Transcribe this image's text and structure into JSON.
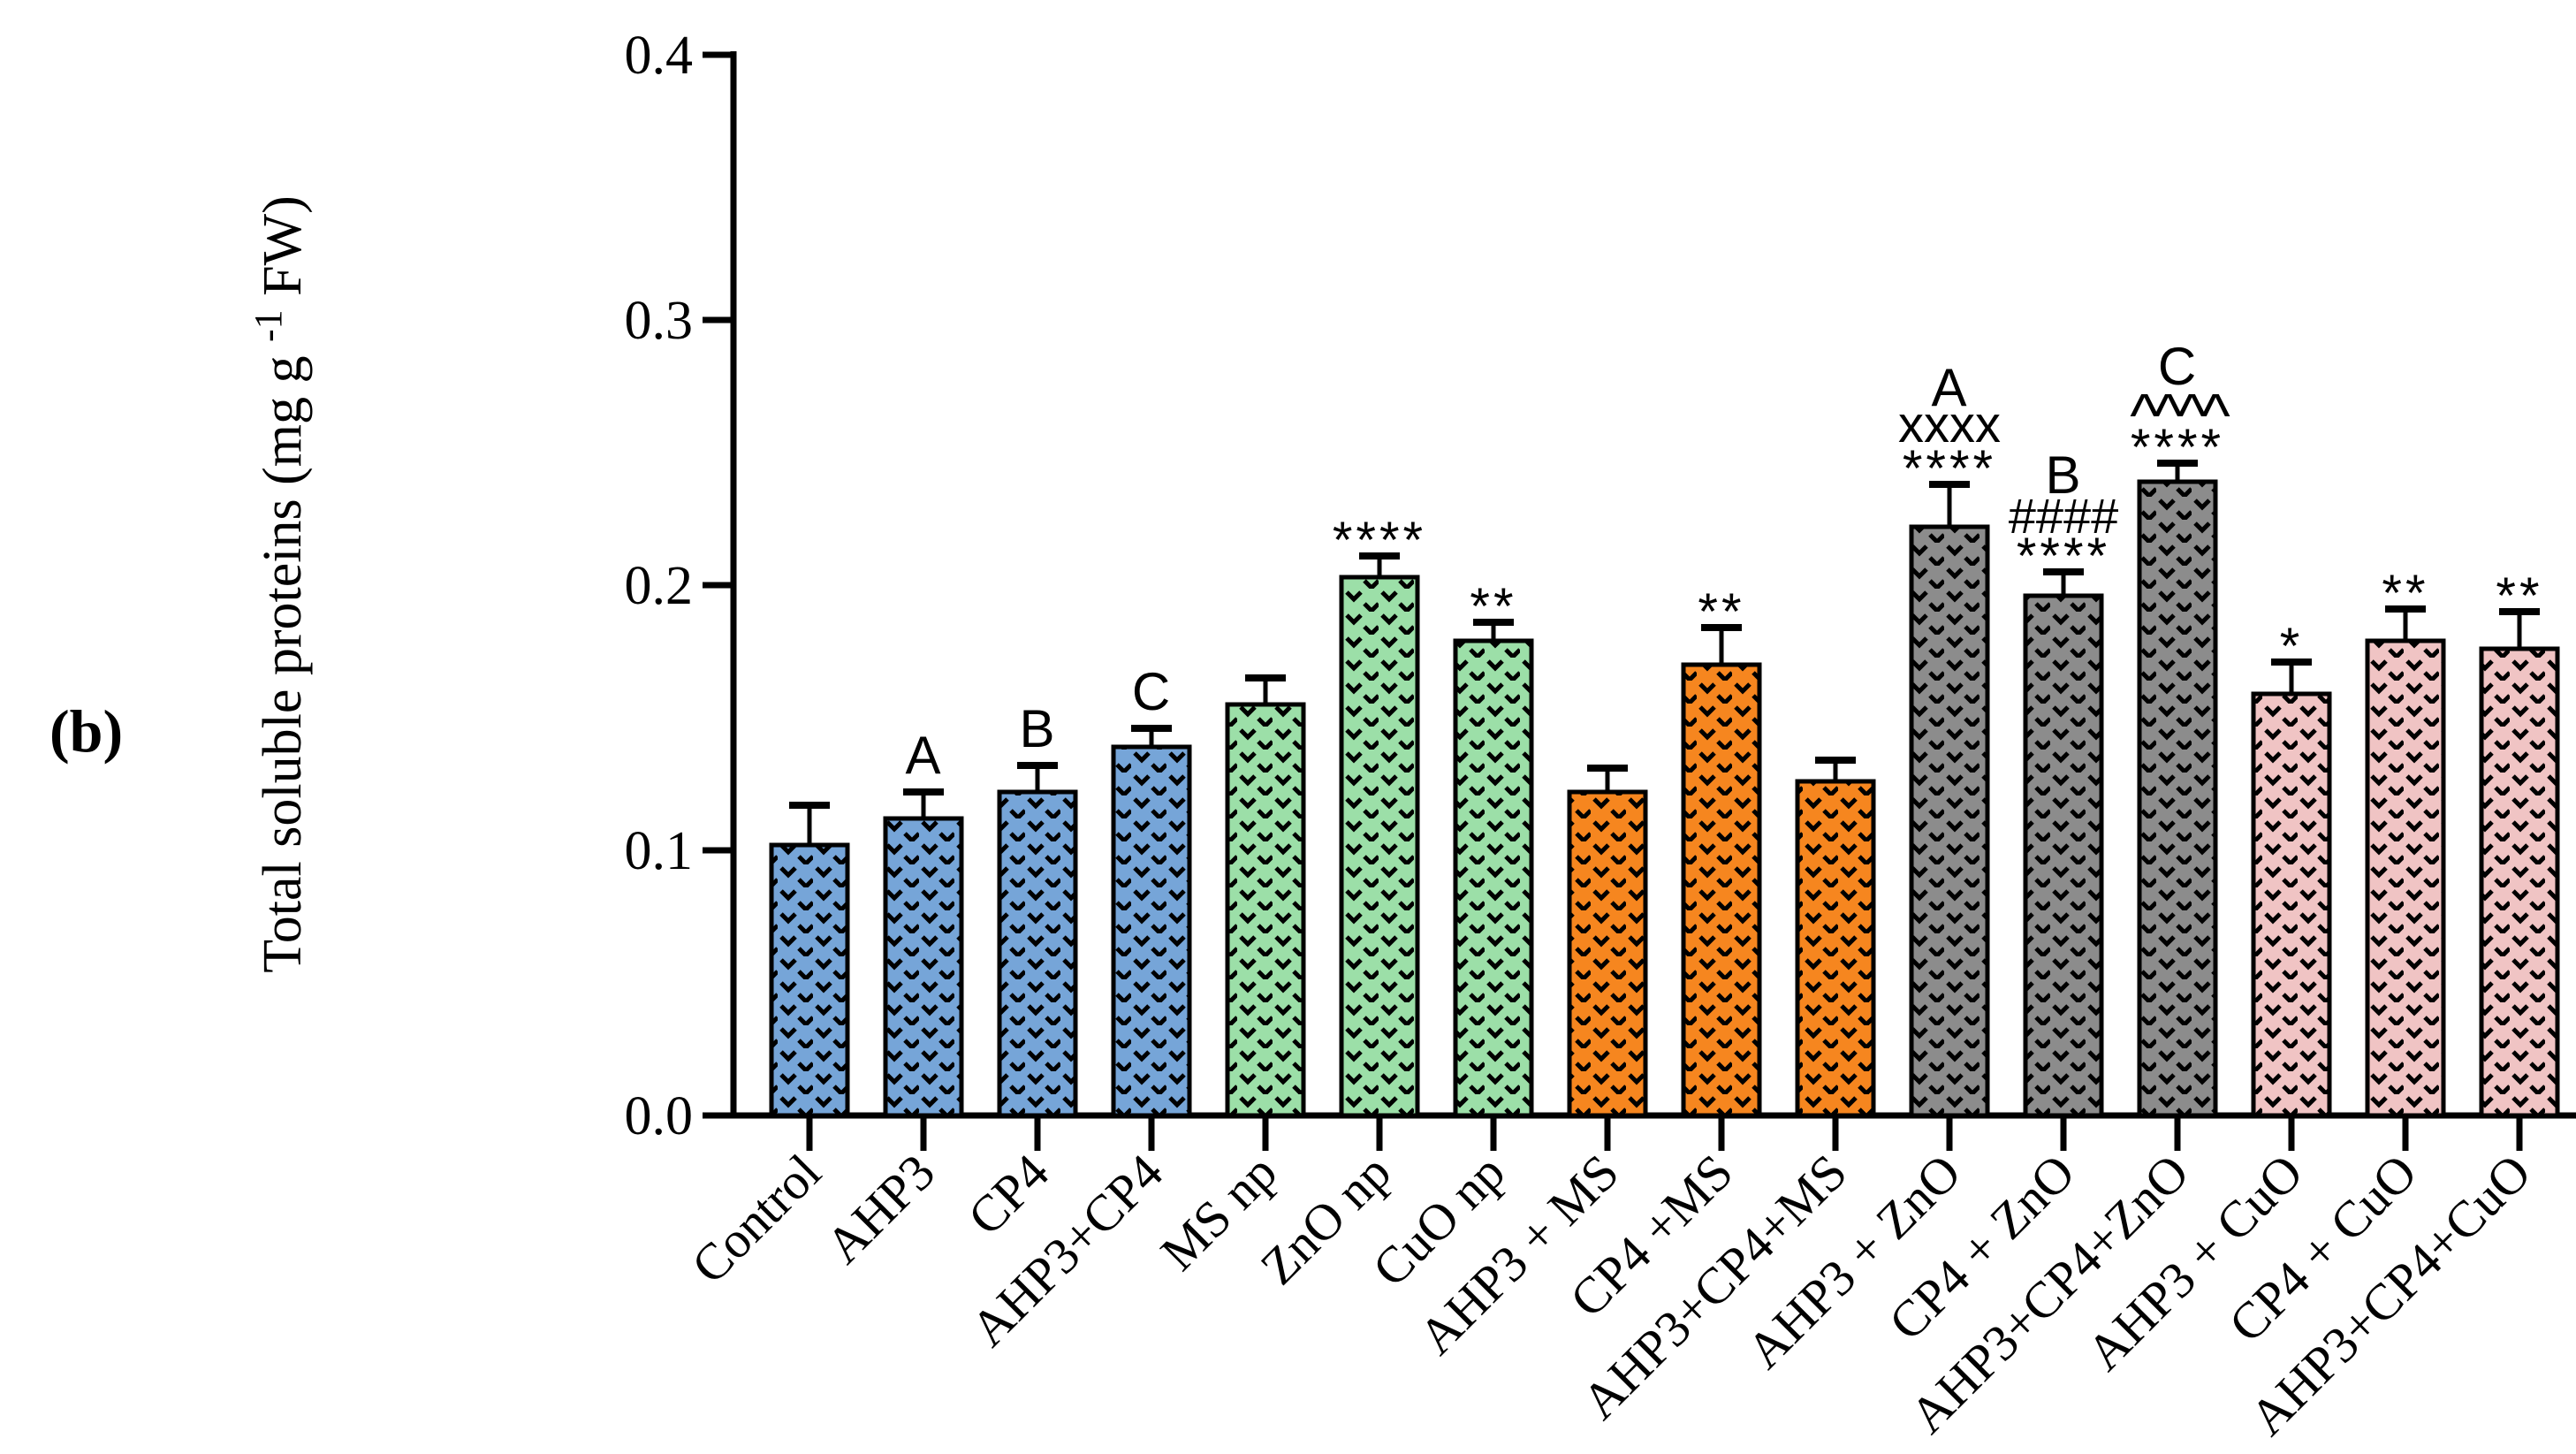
{
  "panel_label": "(b)",
  "chart_data": {
    "type": "bar",
    "title": "",
    "ylabel": "Total soluble proteins (mg g -1 FW)",
    "ylabel_main": "Total soluble proteins (mg g ",
    "ylabel_sup": "-1",
    "ylabel_end": " FW)",
    "xlabel": "",
    "ylim": [
      0.0,
      0.4
    ],
    "yticks": [
      "0.0",
      "0.1",
      "0.2",
      "0.3",
      "0.4"
    ],
    "grid": false,
    "legend": null,
    "categories": [
      "Control",
      "AHP3",
      "CP4",
      "AHP3+CP4",
      "MS np",
      "ZnO np",
      "CuO np",
      "AHP3 + MS",
      "CP4 +MS",
      "AHP3+CP4+MS",
      "AHP3 + ZnO",
      "CP4 + ZnO",
      "AHP3+CP4+ZnO",
      "AHP3 + CuO",
      "CP4 + CuO",
      "AHP3+CP4+CuO"
    ],
    "values": [
      0.102,
      0.112,
      0.122,
      0.139,
      0.155,
      0.203,
      0.179,
      0.122,
      0.17,
      0.126,
      0.222,
      0.196,
      0.239,
      0.159,
      0.179,
      0.176
    ],
    "errors_up": [
      0.015,
      0.01,
      0.01,
      0.007,
      0.01,
      0.008,
      0.007,
      0.009,
      0.014,
      0.008,
      0.016,
      0.009,
      0.007,
      0.012,
      0.012,
      0.014
    ],
    "annotations": [
      [],
      [
        "A"
      ],
      [
        "B"
      ],
      [
        "C"
      ],
      [],
      [
        "****"
      ],
      [
        "**"
      ],
      [],
      [
        "**"
      ],
      [],
      [
        "****",
        "xxxx",
        "A"
      ],
      [
        "****",
        "####",
        "B"
      ],
      [
        "****",
        "^^^^",
        "C"
      ],
      [
        "*"
      ],
      [
        "**"
      ],
      [
        "**"
      ]
    ],
    "group_colors": [
      "#76A5D8",
      "#9CDFA8",
      "#F6861F",
      "#8C8C8C",
      "#F0C4C4"
    ],
    "bar_group_index": [
      0,
      0,
      0,
      0,
      1,
      1,
      1,
      2,
      2,
      2,
      3,
      3,
      3,
      4,
      4,
      4
    ],
    "pattern_mark_color": "#000000",
    "axis_color": "#000000",
    "text_color": "#000000"
  }
}
